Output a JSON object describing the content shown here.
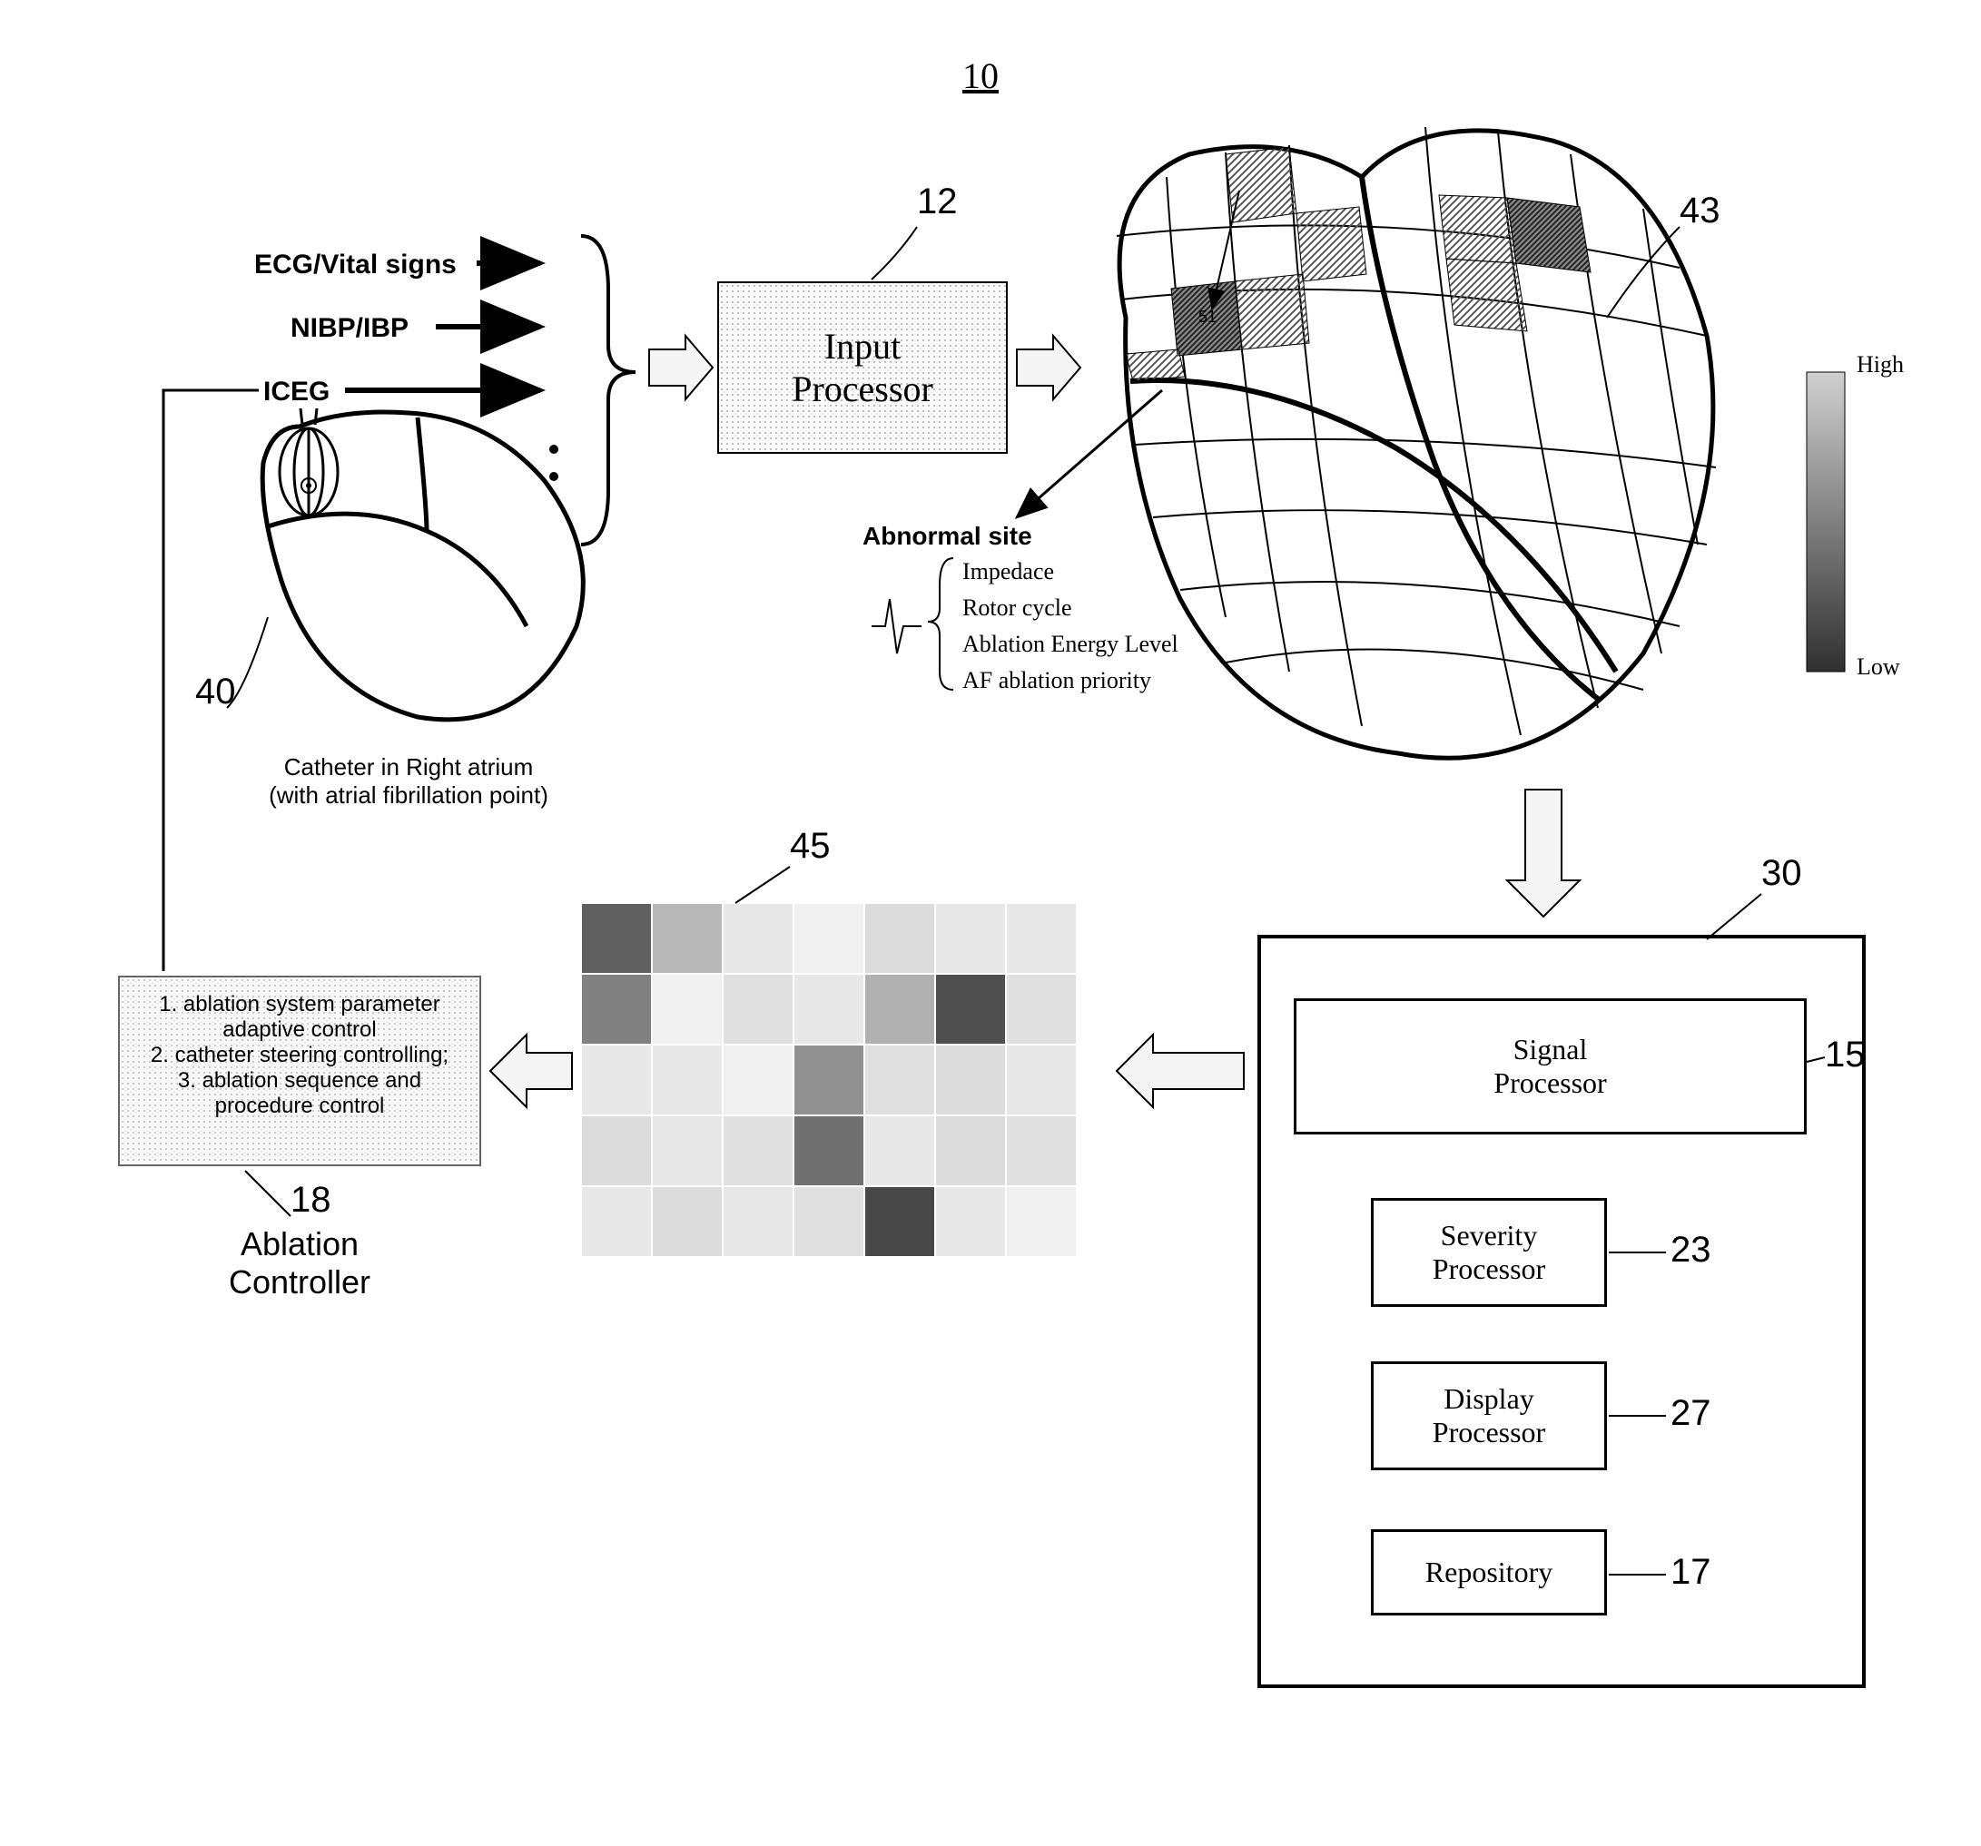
{
  "figure_number": "10",
  "signals": {
    "ecg": "ECG/Vital signs",
    "nibp": "NIBP/IBP",
    "iceg": "ICEG"
  },
  "input_processor": {
    "label_l1": "Input",
    "label_l2": "Processor",
    "ref": "12"
  },
  "heart_small": {
    "ref": "40",
    "caption_l1": "Catheter in Right atrium",
    "caption_l2": "(with atrial fibrillation point)"
  },
  "heart_large": {
    "ref_left": "51",
    "ref_right": "43"
  },
  "abnormal": {
    "title": "Abnormal site",
    "items": [
      "Impedace",
      "Rotor cycle",
      "Ablation Energy Level",
      "AF ablation priority"
    ]
  },
  "legend": {
    "high": "High",
    "low": "Low",
    "gradient_top": "#cccccc",
    "gradient_bottom": "#404040"
  },
  "heatmap": {
    "ref": "45",
    "rows": 5,
    "cols": 7,
    "cell_size": 78,
    "colors": [
      [
        "#606060",
        "#b8b8b8",
        "#e8e8e8",
        "#f0f0f0",
        "#dcdcdc",
        "#e8e8e8",
        "#e8e8e8"
      ],
      [
        "#808080",
        "#f0f0f0",
        "#e0e0e0",
        "#e8e8e8",
        "#b0b0b0",
        "#505050",
        "#e0e0e0"
      ],
      [
        "#e8e8e8",
        "#e8e8e8",
        "#f0f0f0",
        "#909090",
        "#e0e0e0",
        "#dcdcdc",
        "#e8e8e8"
      ],
      [
        "#dcdcdc",
        "#e8e8e8",
        "#e0e0e0",
        "#707070",
        "#e8e8e8",
        "#dcdcdc",
        "#e0e0e0"
      ],
      [
        "#e8e8e8",
        "#dcdcdc",
        "#e8e8e8",
        "#e0e0e0",
        "#484848",
        "#e8e8e8",
        "#f0f0f0"
      ]
    ]
  },
  "ablation_controller": {
    "ref": "18",
    "title": "Ablation",
    "title2": "Controller",
    "line1": "1. ablation system parameter",
    "line2": "adaptive control",
    "line3": "2. catheter steering controlling;",
    "line4": "3. ablation sequence and",
    "line5": "procedure control"
  },
  "system": {
    "ref": "30",
    "signal_processor": {
      "label_l1": "Signal",
      "label_l2": "Processor",
      "ref": "15"
    },
    "severity": {
      "label_l1": "Severity",
      "label_l2": "Processor",
      "ref": "23"
    },
    "display": {
      "label_l1": "Display",
      "label_l2": "Processor",
      "ref": "27"
    },
    "repository": {
      "label": "Repository",
      "ref": "17"
    }
  },
  "colors": {
    "stroke": "#000000",
    "arrow_fill": "#f0f0f0",
    "dotted_bg": "#f8f8f8"
  }
}
